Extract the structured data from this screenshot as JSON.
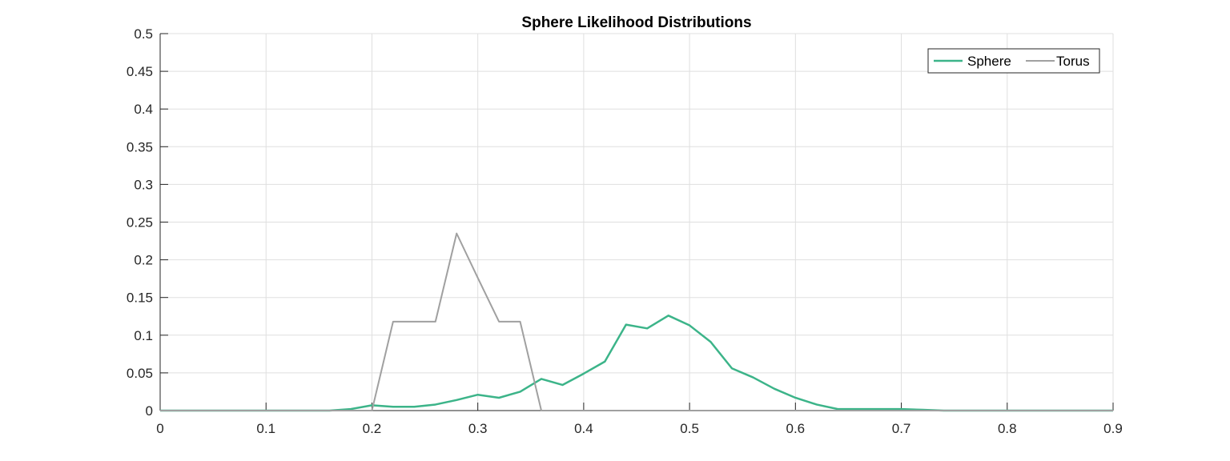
{
  "chart_data": {
    "type": "line",
    "title": "Sphere Likelihood Distributions",
    "xlabel": "",
    "ylabel": "",
    "xlim": [
      0,
      0.9
    ],
    "ylim": [
      0,
      0.5
    ],
    "xticks": [
      "0",
      "0.1",
      "0.2",
      "0.3",
      "0.4",
      "0.5",
      "0.6",
      "0.7",
      "0.8",
      "0.9"
    ],
    "yticks": [
      "0",
      "0.05",
      "0.1",
      "0.15",
      "0.2",
      "0.25",
      "0.3",
      "0.35",
      "0.4",
      "0.45",
      "0.5"
    ],
    "grid": true,
    "legend_position": "top-right",
    "series": [
      {
        "name": "Sphere",
        "color": "#3cb489",
        "x": [
          0,
          0.02,
          0.04,
          0.06,
          0.08,
          0.1,
          0.12,
          0.14,
          0.16,
          0.18,
          0.2,
          0.22,
          0.24,
          0.26,
          0.28,
          0.3,
          0.32,
          0.34,
          0.36,
          0.38,
          0.4,
          0.42,
          0.44,
          0.46,
          0.48,
          0.5,
          0.52,
          0.54,
          0.56,
          0.58,
          0.6,
          0.62,
          0.64,
          0.66,
          0.68,
          0.7,
          0.72,
          0.74,
          0.76,
          0.78,
          0.8,
          0.82,
          0.84,
          0.86,
          0.88,
          0.9
        ],
        "y": [
          0,
          0,
          0,
          0,
          0,
          0,
          0,
          0,
          0,
          0.002,
          0.007,
          0.005,
          0.005,
          0.008,
          0.014,
          0.021,
          0.017,
          0.025,
          0.042,
          0.034,
          0.049,
          0.065,
          0.114,
          0.109,
          0.126,
          0.113,
          0.091,
          0.056,
          0.044,
          0.029,
          0.017,
          0.008,
          0.002,
          0.002,
          0.002,
          0.002,
          0.001,
          0,
          0,
          0,
          0,
          0,
          0,
          0,
          0,
          0
        ]
      },
      {
        "name": "Torus",
        "color": "#a0a0a0",
        "x": [
          0,
          0.02,
          0.04,
          0.06,
          0.08,
          0.1,
          0.12,
          0.14,
          0.16,
          0.18,
          0.2,
          0.22,
          0.24,
          0.26,
          0.28,
          0.3,
          0.32,
          0.34,
          0.36,
          0.38,
          0.4,
          0.42,
          0.44,
          0.46,
          0.48,
          0.5,
          0.52,
          0.54,
          0.56,
          0.58,
          0.6,
          0.62,
          0.64,
          0.66,
          0.68,
          0.7,
          0.72,
          0.74,
          0.76,
          0.78,
          0.8,
          0.82,
          0.84,
          0.86,
          0.88,
          0.9
        ],
        "y": [
          0,
          0,
          0,
          0,
          0,
          0,
          0,
          0,
          0,
          0,
          0,
          0.118,
          0.118,
          0.118,
          0.235,
          0.176,
          0.118,
          0.118,
          0,
          0,
          0,
          0,
          0,
          0,
          0,
          0,
          0,
          0,
          0,
          0,
          0,
          0,
          0,
          0,
          0,
          0,
          0,
          0,
          0,
          0,
          0,
          0,
          0,
          0,
          0,
          0
        ]
      }
    ]
  }
}
